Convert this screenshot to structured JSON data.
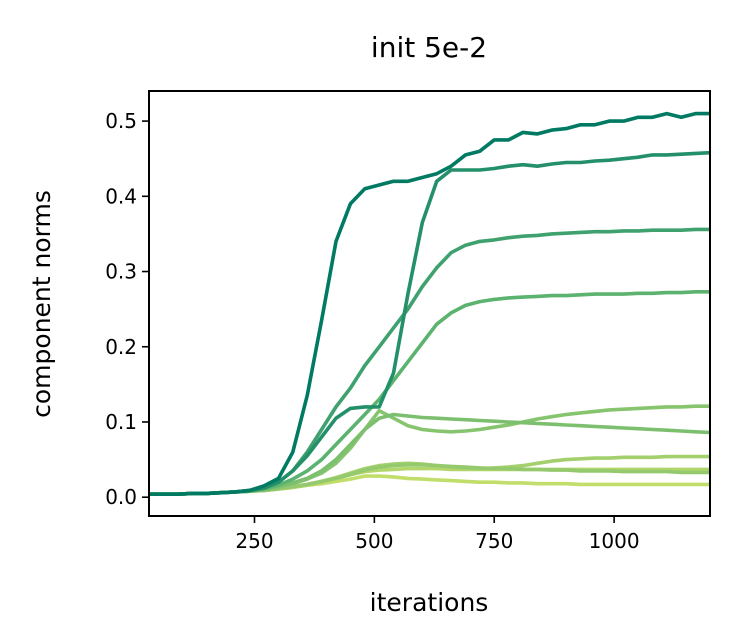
{
  "chart_data": {
    "type": "line",
    "title": "init 5e-2",
    "xlabel": "iterations",
    "ylabel": "component norms",
    "xlim": [
      30,
      1200
    ],
    "ylim": [
      -0.025,
      0.54
    ],
    "xticks": [
      250,
      500,
      750,
      1000
    ],
    "xtick_labels": [
      "250",
      "500",
      "750",
      "1000"
    ],
    "yticks": [
      0.0,
      0.1,
      0.2,
      0.3,
      0.4,
      0.5
    ],
    "ytick_labels": [
      "0.0",
      "0.1",
      "0.2",
      "0.3",
      "0.4",
      "0.5"
    ],
    "grid": false,
    "x": [
      30,
      60,
      90,
      120,
      150,
      180,
      210,
      240,
      270,
      300,
      330,
      360,
      390,
      420,
      450,
      480,
      510,
      540,
      570,
      600,
      630,
      660,
      690,
      720,
      750,
      780,
      810,
      840,
      870,
      900,
      930,
      960,
      990,
      1020,
      1050,
      1080,
      1110,
      1140,
      1170,
      1200
    ],
    "series": [
      {
        "color": "#007a62",
        "values": [
          0.004,
          0.004,
          0.004,
          0.005,
          0.005,
          0.006,
          0.007,
          0.009,
          0.015,
          0.025,
          0.06,
          0.135,
          0.235,
          0.34,
          0.39,
          0.41,
          0.415,
          0.42,
          0.42,
          0.425,
          0.43,
          0.44,
          0.455,
          0.46,
          0.475,
          0.475,
          0.485,
          0.483,
          0.488,
          0.49,
          0.495,
          0.495,
          0.5,
          0.5,
          0.505,
          0.505,
          0.51,
          0.505,
          0.51,
          0.51
        ]
      },
      {
        "color": "#24906a",
        "values": [
          0.004,
          0.004,
          0.004,
          0.005,
          0.005,
          0.006,
          0.007,
          0.009,
          0.012,
          0.02,
          0.035,
          0.055,
          0.08,
          0.105,
          0.118,
          0.12,
          0.12,
          0.165,
          0.27,
          0.365,
          0.42,
          0.435,
          0.435,
          0.435,
          0.437,
          0.44,
          0.442,
          0.44,
          0.443,
          0.445,
          0.445,
          0.447,
          0.448,
          0.45,
          0.452,
          0.455,
          0.455,
          0.456,
          0.457,
          0.458
        ]
      },
      {
        "color": "#3fa26e",
        "values": [
          0.004,
          0.004,
          0.004,
          0.005,
          0.005,
          0.006,
          0.007,
          0.009,
          0.013,
          0.02,
          0.035,
          0.06,
          0.09,
          0.12,
          0.145,
          0.175,
          0.2,
          0.225,
          0.25,
          0.28,
          0.305,
          0.325,
          0.335,
          0.34,
          0.342,
          0.345,
          0.347,
          0.348,
          0.35,
          0.351,
          0.352,
          0.353,
          0.353,
          0.354,
          0.354,
          0.355,
          0.355,
          0.355,
          0.356,
          0.356
        ]
      },
      {
        "color": "#5cb36f",
        "values": [
          0.004,
          0.004,
          0.004,
          0.005,
          0.005,
          0.006,
          0.007,
          0.008,
          0.011,
          0.016,
          0.024,
          0.035,
          0.05,
          0.07,
          0.09,
          0.11,
          0.13,
          0.155,
          0.18,
          0.205,
          0.23,
          0.245,
          0.255,
          0.26,
          0.263,
          0.265,
          0.266,
          0.267,
          0.268,
          0.268,
          0.269,
          0.27,
          0.27,
          0.27,
          0.271,
          0.271,
          0.272,
          0.272,
          0.273,
          0.273
        ]
      },
      {
        "color": "#7cc06f",
        "values": [
          0.004,
          0.004,
          0.004,
          0.005,
          0.005,
          0.006,
          0.007,
          0.008,
          0.01,
          0.014,
          0.019,
          0.025,
          0.035,
          0.05,
          0.07,
          0.09,
          0.105,
          0.11,
          0.108,
          0.106,
          0.105,
          0.104,
          0.103,
          0.102,
          0.101,
          0.1,
          0.099,
          0.098,
          0.097,
          0.096,
          0.095,
          0.094,
          0.093,
          0.092,
          0.091,
          0.09,
          0.089,
          0.088,
          0.087,
          0.086
        ]
      },
      {
        "color": "#86c46e",
        "values": [
          0.004,
          0.004,
          0.004,
          0.005,
          0.005,
          0.006,
          0.007,
          0.008,
          0.01,
          0.013,
          0.018,
          0.024,
          0.032,
          0.045,
          0.065,
          0.09,
          0.115,
          0.105,
          0.095,
          0.09,
          0.088,
          0.087,
          0.088,
          0.09,
          0.093,
          0.096,
          0.1,
          0.104,
          0.107,
          0.11,
          0.112,
          0.114,
          0.116,
          0.117,
          0.118,
          0.119,
          0.12,
          0.12,
          0.121,
          0.121
        ]
      },
      {
        "color": "#94ca6d",
        "values": [
          0.004,
          0.004,
          0.004,
          0.005,
          0.005,
          0.006,
          0.007,
          0.008,
          0.009,
          0.011,
          0.014,
          0.017,
          0.021,
          0.025,
          0.03,
          0.036,
          0.04,
          0.042,
          0.043,
          0.043,
          0.042,
          0.041,
          0.04,
          0.039,
          0.038,
          0.038,
          0.037,
          0.037,
          0.036,
          0.036,
          0.035,
          0.035,
          0.035,
          0.034,
          0.034,
          0.034,
          0.034,
          0.033,
          0.033,
          0.033
        ]
      },
      {
        "color": "#a3d06c",
        "values": [
          0.004,
          0.004,
          0.004,
          0.005,
          0.005,
          0.006,
          0.007,
          0.008,
          0.009,
          0.011,
          0.014,
          0.017,
          0.021,
          0.026,
          0.032,
          0.038,
          0.042,
          0.044,
          0.045,
          0.044,
          0.042,
          0.04,
          0.038,
          0.038,
          0.039,
          0.04,
          0.042,
          0.045,
          0.048,
          0.05,
          0.051,
          0.052,
          0.052,
          0.053,
          0.053,
          0.053,
          0.054,
          0.054,
          0.054,
          0.054
        ]
      },
      {
        "color": "#b2d66b",
        "values": [
          0.004,
          0.004,
          0.004,
          0.005,
          0.005,
          0.006,
          0.007,
          0.008,
          0.009,
          0.011,
          0.013,
          0.016,
          0.02,
          0.025,
          0.03,
          0.034,
          0.036,
          0.037,
          0.038,
          0.038,
          0.038,
          0.037,
          0.037,
          0.037,
          0.037,
          0.037,
          0.037,
          0.037,
          0.037,
          0.037,
          0.037,
          0.037,
          0.037,
          0.037,
          0.037,
          0.037,
          0.037,
          0.037,
          0.037,
          0.037
        ]
      },
      {
        "color": "#c1dd6a",
        "values": [
          0.004,
          0.004,
          0.004,
          0.005,
          0.005,
          0.006,
          0.007,
          0.008,
          0.009,
          0.011,
          0.013,
          0.016,
          0.018,
          0.021,
          0.024,
          0.028,
          0.028,
          0.027,
          0.025,
          0.024,
          0.023,
          0.022,
          0.021,
          0.02,
          0.02,
          0.019,
          0.019,
          0.018,
          0.018,
          0.018,
          0.017,
          0.017,
          0.017,
          0.017,
          0.017,
          0.017,
          0.017,
          0.017,
          0.017,
          0.017
        ]
      }
    ]
  }
}
